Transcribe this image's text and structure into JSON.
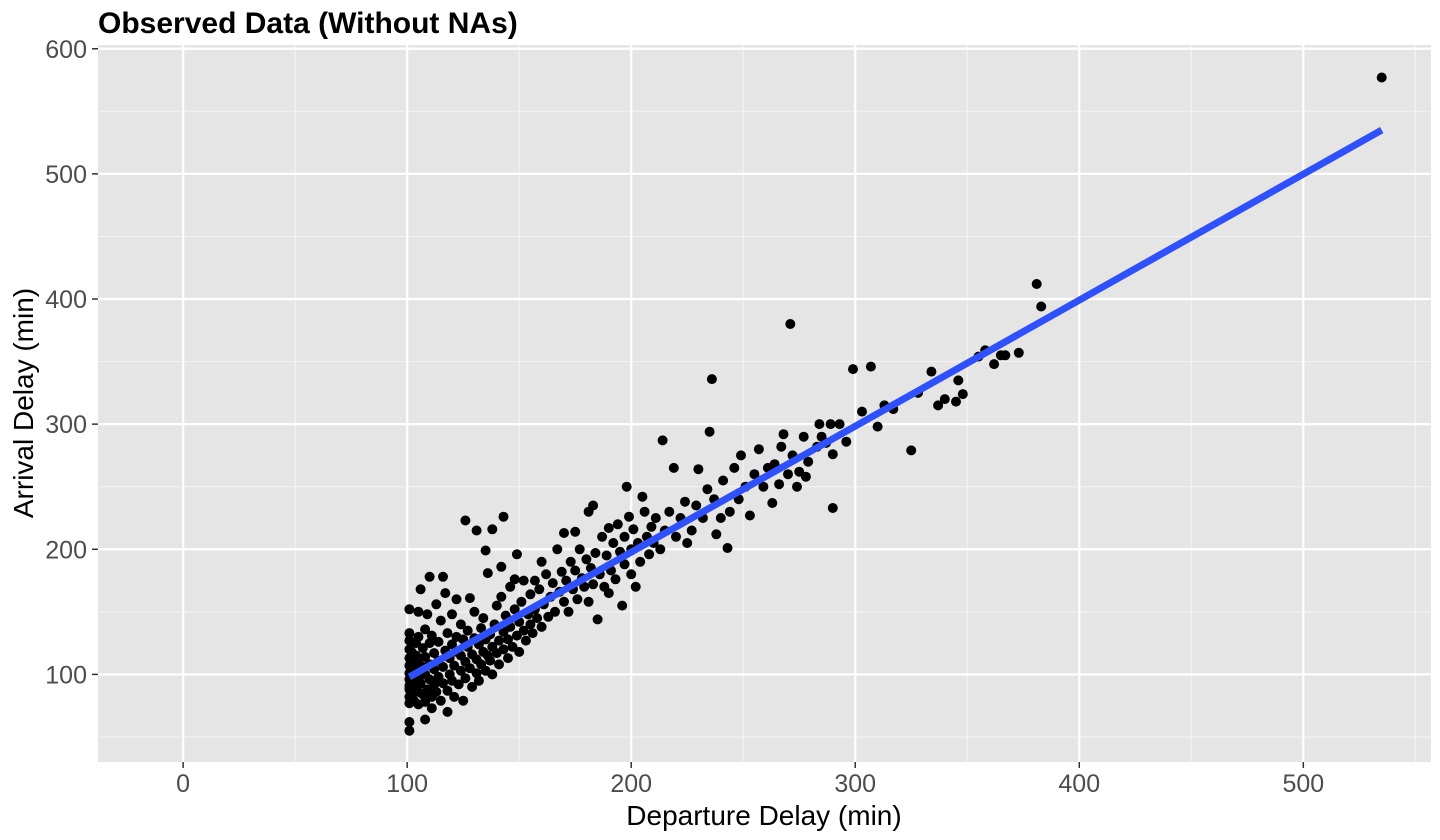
{
  "chart_data": {
    "type": "scatter",
    "title": "Observed Data (Without NAs)",
    "xlabel": "Departure Delay (min)",
    "ylabel": "Arrival Delay (min)",
    "xlim": [
      -38,
      557
    ],
    "ylim": [
      30,
      603
    ],
    "x_ticks": [
      0,
      100,
      200,
      300,
      400,
      500
    ],
    "x_tick_labels": [
      "0",
      "100",
      "200",
      "300",
      "400",
      "500"
    ],
    "y_ticks": [
      100,
      200,
      300,
      400,
      500,
      600
    ],
    "y_tick_labels": [
      "100",
      "200",
      "300",
      "400",
      "500",
      "600"
    ],
    "grid": true,
    "colors": {
      "panel": "#e5e5e5",
      "grid_major": "#ffffff",
      "grid_minor": "#f2f2f2",
      "points": "#000000",
      "fit_line": "#3050f8"
    },
    "series": [
      {
        "type": "scatter",
        "points": [
          [
            101,
            55
          ],
          [
            101,
            62
          ],
          [
            101,
            77
          ],
          [
            101,
            82
          ],
          [
            101,
            88
          ],
          [
            101,
            91
          ],
          [
            101,
            96
          ],
          [
            101,
            101
          ],
          [
            101,
            107
          ],
          [
            101,
            113
          ],
          [
            101,
            120
          ],
          [
            101,
            127
          ],
          [
            101,
            133
          ],
          [
            101,
            152
          ],
          [
            102,
            85
          ],
          [
            102,
            94
          ],
          [
            102,
            105
          ],
          [
            102,
            118
          ],
          [
            103,
            79
          ],
          [
            103,
            99
          ],
          [
            103,
            109
          ],
          [
            104,
            90
          ],
          [
            104,
            103
          ],
          [
            104,
            115
          ],
          [
            104,
            125
          ],
          [
            105,
            76
          ],
          [
            105,
            86
          ],
          [
            105,
            98
          ],
          [
            105,
            110
          ],
          [
            105,
            130
          ],
          [
            105,
            150
          ],
          [
            106,
            168
          ],
          [
            106,
            93
          ],
          [
            107,
            84
          ],
          [
            107,
            106
          ],
          [
            107,
            121
          ],
          [
            108,
            64
          ],
          [
            108,
            78
          ],
          [
            108,
            100
          ],
          [
            108,
            114
          ],
          [
            108,
            136
          ],
          [
            109,
            148
          ],
          [
            109,
            88
          ],
          [
            110,
            178
          ],
          [
            110,
            96
          ],
          [
            110,
            108
          ],
          [
            110,
            125
          ],
          [
            111,
            73
          ],
          [
            111,
            82
          ],
          [
            111,
            131
          ],
          [
            112,
            92
          ],
          [
            112,
            104
          ],
          [
            112,
            117
          ],
          [
            113,
            156
          ],
          [
            113,
            86
          ],
          [
            114,
            98
          ],
          [
            114,
            111
          ],
          [
            114,
            126
          ],
          [
            115,
            79
          ],
          [
            115,
            143
          ],
          [
            116,
            178
          ],
          [
            116,
            93
          ],
          [
            116,
            106
          ],
          [
            117,
            119
          ],
          [
            117,
            165
          ],
          [
            118,
            70
          ],
          [
            118,
            87
          ],
          [
            118,
            133
          ],
          [
            119,
            100
          ],
          [
            119,
            113
          ],
          [
            120,
            95
          ],
          [
            120,
            124
          ],
          [
            120,
            148
          ],
          [
            121,
            82
          ],
          [
            121,
            107
          ],
          [
            122,
            118
          ],
          [
            122,
            130
          ],
          [
            122,
            160
          ],
          [
            123,
            92
          ],
          [
            124,
            103
          ],
          [
            124,
            115
          ],
          [
            124,
            140
          ],
          [
            125,
            79
          ],
          [
            125,
            128
          ],
          [
            126,
            223
          ],
          [
            126,
            110
          ],
          [
            126,
            97
          ],
          [
            127,
            122
          ],
          [
            127,
            135
          ],
          [
            128,
            161
          ],
          [
            128,
            105
          ],
          [
            129,
            90
          ],
          [
            129,
            116
          ],
          [
            130,
            129
          ],
          [
            130,
            150
          ],
          [
            131,
            215
          ],
          [
            131,
            101
          ],
          [
            131,
            112
          ],
          [
            132,
            124
          ],
          [
            132,
            95
          ],
          [
            133,
            108
          ],
          [
            133,
            137
          ],
          [
            134,
            118
          ],
          [
            134,
            145
          ],
          [
            135,
            199
          ],
          [
            135,
            103
          ],
          [
            135,
            128
          ],
          [
            136,
            115
          ],
          [
            136,
            181
          ],
          [
            137,
            111
          ],
          [
            137,
            132
          ],
          [
            138,
            216
          ],
          [
            138,
            122
          ],
          [
            138,
            100
          ],
          [
            139,
            140
          ],
          [
            140,
            155
          ],
          [
            140,
            117
          ],
          [
            141,
            127
          ],
          [
            141,
            108
          ],
          [
            142,
            186
          ],
          [
            142,
            162
          ],
          [
            143,
            226
          ],
          [
            143,
            134
          ],
          [
            143,
            120
          ],
          [
            144,
            147
          ],
          [
            145,
            113
          ],
          [
            145,
            128
          ],
          [
            146,
            170
          ],
          [
            146,
            138
          ],
          [
            147,
            122
          ],
          [
            148,
            152
          ],
          [
            148,
            176
          ],
          [
            149,
            196
          ],
          [
            149,
            131
          ],
          [
            150,
            142
          ],
          [
            150,
            118
          ],
          [
            151,
            158
          ],
          [
            152,
            175
          ],
          [
            152,
            135
          ],
          [
            153,
            127
          ],
          [
            154,
            148
          ],
          [
            155,
            140
          ],
          [
            155,
            164
          ],
          [
            156,
            133
          ],
          [
            157,
            175
          ],
          [
            157,
            152
          ],
          [
            158,
            145
          ],
          [
            159,
            168
          ],
          [
            160,
            138
          ],
          [
            160,
            190
          ],
          [
            161,
            156
          ],
          [
            162,
            180
          ],
          [
            163,
            146
          ],
          [
            164,
            162
          ],
          [
            165,
            173
          ],
          [
            166,
            150
          ],
          [
            167,
            200
          ],
          [
            168,
            166
          ],
          [
            169,
            182
          ],
          [
            170,
            158
          ],
          [
            170,
            213
          ],
          [
            171,
            175
          ],
          [
            172,
            150
          ],
          [
            173,
            190
          ],
          [
            174,
            168
          ],
          [
            175,
            214
          ],
          [
            175,
            183
          ],
          [
            176,
            160
          ],
          [
            177,
            200
          ],
          [
            178,
            177
          ],
          [
            179,
            170
          ],
          [
            180,
            192
          ],
          [
            181,
            230
          ],
          [
            181,
            158
          ],
          [
            182,
            185
          ],
          [
            183,
            235
          ],
          [
            183,
            172
          ],
          [
            184,
            197
          ],
          [
            185,
            144
          ],
          [
            186,
            180
          ],
          [
            187,
            210
          ],
          [
            188,
            170
          ],
          [
            189,
            195
          ],
          [
            190,
            217
          ],
          [
            190,
            165
          ],
          [
            191,
            183
          ],
          [
            192,
            205
          ],
          [
            193,
            176
          ],
          [
            194,
            220
          ],
          [
            195,
            198
          ],
          [
            196,
            155
          ],
          [
            197,
            210
          ],
          [
            197,
            188
          ],
          [
            198,
            250
          ],
          [
            199,
            226
          ],
          [
            200,
            200
          ],
          [
            200,
            180
          ],
          [
            201,
            216
          ],
          [
            202,
            170
          ],
          [
            203,
            205
          ],
          [
            204,
            190
          ],
          [
            205,
            242
          ],
          [
            206,
            230
          ],
          [
            207,
            210
          ],
          [
            208,
            196
          ],
          [
            209,
            218
          ],
          [
            210,
            205
          ],
          [
            211,
            225
          ],
          [
            213,
            200
          ],
          [
            214,
            287
          ],
          [
            215,
            215
          ],
          [
            217,
            230
          ],
          [
            219,
            265
          ],
          [
            220,
            210
          ],
          [
            222,
            225
          ],
          [
            224,
            238
          ],
          [
            225,
            205
          ],
          [
            227,
            215
          ],
          [
            229,
            235
          ],
          [
            230,
            264
          ],
          [
            232,
            225
          ],
          [
            234,
            248
          ],
          [
            235,
            294
          ],
          [
            236,
            336
          ],
          [
            237,
            240
          ],
          [
            238,
            212
          ],
          [
            240,
            225
          ],
          [
            241,
            255
          ],
          [
            243,
            201
          ],
          [
            244,
            230
          ],
          [
            246,
            265
          ],
          [
            248,
            240
          ],
          [
            249,
            275
          ],
          [
            251,
            250
          ],
          [
            253,
            227
          ],
          [
            255,
            260
          ],
          [
            257,
            280
          ],
          [
            259,
            250
          ],
          [
            261,
            265
          ],
          [
            263,
            237
          ],
          [
            264,
            268
          ],
          [
            266,
            252
          ],
          [
            267,
            282
          ],
          [
            268,
            292
          ],
          [
            270,
            260
          ],
          [
            271,
            380
          ],
          [
            272,
            275
          ],
          [
            274,
            250
          ],
          [
            275,
            262
          ],
          [
            277,
            290
          ],
          [
            278,
            258
          ],
          [
            279,
            270
          ],
          [
            283,
            282
          ],
          [
            284,
            300
          ],
          [
            285,
            290
          ],
          [
            287,
            285
          ],
          [
            289,
            300
          ],
          [
            290,
            276
          ],
          [
            290,
            233
          ],
          [
            293,
            300
          ],
          [
            296,
            286
          ],
          [
            299,
            344
          ],
          [
            303,
            310
          ],
          [
            307,
            346
          ],
          [
            310,
            298
          ],
          [
            313,
            315
          ],
          [
            317,
            312
          ],
          [
            325,
            279
          ],
          [
            328,
            325
          ],
          [
            334,
            342
          ],
          [
            337,
            315
          ],
          [
            340,
            320
          ],
          [
            345,
            318
          ],
          [
            346,
            335
          ],
          [
            348,
            324
          ],
          [
            355,
            354
          ],
          [
            358,
            359
          ],
          [
            362,
            348
          ],
          [
            365,
            355
          ],
          [
            367,
            355
          ],
          [
            373,
            357
          ],
          [
            381,
            412
          ],
          [
            383,
            394
          ],
          [
            535,
            577
          ]
        ]
      },
      {
        "type": "line",
        "points": [
          [
            101,
            98
          ],
          [
            535,
            535
          ]
        ]
      }
    ]
  }
}
